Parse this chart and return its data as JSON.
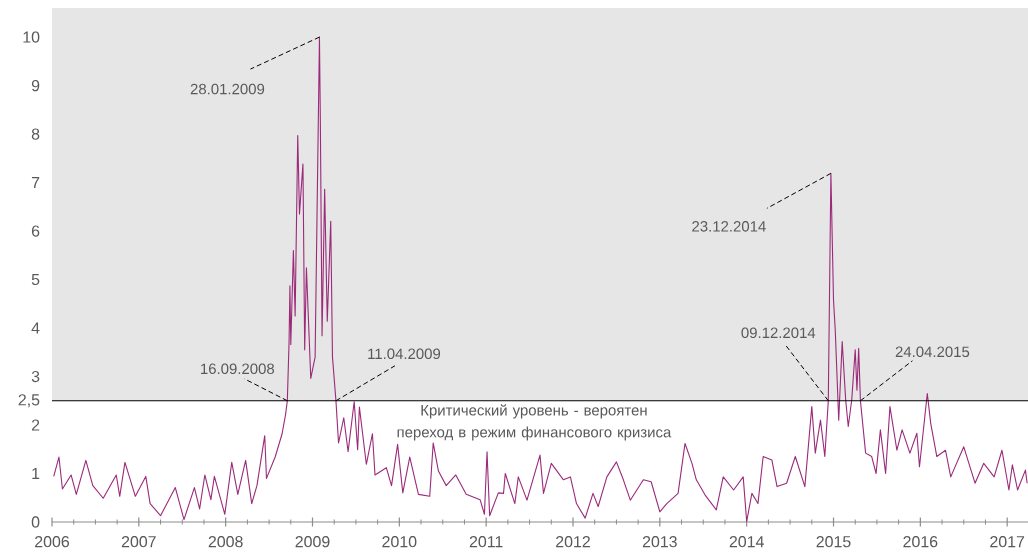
{
  "chart_data": {
    "type": "line",
    "x": [
      2006.02,
      2006.08,
      2006.12,
      2006.22,
      2006.28,
      2006.39,
      2006.47,
      2006.59,
      2006.74,
      2006.78,
      2006.84,
      2006.96,
      2007.08,
      2007.13,
      2007.25,
      2007.42,
      2007.52,
      2007.64,
      2007.7,
      2007.76,
      2007.83,
      2007.87,
      2007.99,
      2008.07,
      2008.14,
      2008.23,
      2008.3,
      2008.36,
      2008.45,
      2008.47,
      2008.57,
      2008.65,
      2008.69,
      2008.71,
      2008.73,
      2008.74,
      2008.75,
      2008.78,
      2008.8,
      2008.83,
      2008.85,
      2008.89,
      2008.91,
      2008.93,
      2008.98,
      2009.03,
      2009.08,
      2009.09,
      2009.11,
      2009.14,
      2009.17,
      2009.21,
      2009.23,
      2009.27,
      2009.3,
      2009.36,
      2009.41,
      2009.48,
      2009.52,
      2009.54,
      2009.62,
      2009.69,
      2009.72,
      2009.85,
      2009.91,
      2009.98,
      2010.04,
      2010.12,
      2010.22,
      2010.35,
      2010.39,
      2010.45,
      2010.54,
      2010.65,
      2010.77,
      2010.93,
      2010.98,
      2011.01,
      2011.04,
      2011.14,
      2011.2,
      2011.22,
      2011.33,
      2011.37,
      2011.47,
      2011.62,
      2011.66,
      2011.75,
      2011.89,
      2011.97,
      2012.04,
      2012.14,
      2012.23,
      2012.29,
      2012.39,
      2012.5,
      2012.58,
      2012.66,
      2012.81,
      2012.9,
      2013.0,
      2013.08,
      2013.21,
      2013.29,
      2013.37,
      2013.42,
      2013.52,
      2013.65,
      2013.73,
      2013.85,
      2013.96,
      2014.0,
      2014.06,
      2014.13,
      2014.19,
      2014.29,
      2014.35,
      2014.46,
      2014.56,
      2014.67,
      2014.75,
      2014.79,
      2014.85,
      2014.9,
      2014.94,
      2014.97,
      2015.0,
      2015.02,
      2015.06,
      2015.1,
      2015.14,
      2015.17,
      2015.21,
      2015.25,
      2015.27,
      2015.29,
      2015.31,
      2015.37,
      2015.44,
      2015.49,
      2015.54,
      2015.6,
      2015.65,
      2015.73,
      2015.79,
      2015.88,
      2015.96,
      2015.99,
      2016.08,
      2016.12,
      2016.19,
      2016.29,
      2016.35,
      2016.5,
      2016.63,
      2016.73,
      2016.85,
      2016.94,
      2017.02,
      2017.06,
      2017.12,
      2017.21,
      2017.23
    ],
    "series": [
      {
        "color": "#9b2a7a",
        "values": [
          0.94,
          1.34,
          0.68,
          0.97,
          0.57,
          1.27,
          0.75,
          0.49,
          0.97,
          0.53,
          1.23,
          0.53,
          0.94,
          0.38,
          0.13,
          0.71,
          0.05,
          0.71,
          0.27,
          0.97,
          0.46,
          0.94,
          0.16,
          1.23,
          0.57,
          1.27,
          0.38,
          0.75,
          1.78,
          0.9,
          1.34,
          1.82,
          2.22,
          2.5,
          3.7,
          4.87,
          3.66,
          5.6,
          4.25,
          7.97,
          6.35,
          7.38,
          3.55,
          5.24,
          2.96,
          3.4,
          10.0,
          8.34,
          3.84,
          6.86,
          4.14,
          6.2,
          3.4,
          2.5,
          1.63,
          2.15,
          1.45,
          2.48,
          1.49,
          2.37,
          1.19,
          1.82,
          0.97,
          1.12,
          0.75,
          1.6,
          0.6,
          1.34,
          0.57,
          0.53,
          1.63,
          1.05,
          0.75,
          0.97,
          0.57,
          0.46,
          0.16,
          1.45,
          0.13,
          0.6,
          0.59,
          1.0,
          0.38,
          0.93,
          0.45,
          1.38,
          0.59,
          1.21,
          0.87,
          0.93,
          0.38,
          0.08,
          0.59,
          0.32,
          0.93,
          1.24,
          0.87,
          0.45,
          0.87,
          0.83,
          0.21,
          0.38,
          0.59,
          1.62,
          1.21,
          0.87,
          0.56,
          0.25,
          0.93,
          0.66,
          0.93,
          0.01,
          0.59,
          0.38,
          1.35,
          1.28,
          0.73,
          0.8,
          1.35,
          0.73,
          2.38,
          1.42,
          2.1,
          1.35,
          2.5,
          7.19,
          4.58,
          3.96,
          2.1,
          3.72,
          2.52,
          1.97,
          2.52,
          3.55,
          2.72,
          3.58,
          2.5,
          1.42,
          1.35,
          1.0,
          1.9,
          1.0,
          2.38,
          1.48,
          1.9,
          1.42,
          1.83,
          1.14,
          2.65,
          2.03,
          1.35,
          1.48,
          0.93,
          1.55,
          0.8,
          1.21,
          0.93,
          1.48,
          0.66,
          1.18,
          0.66,
          1.07,
          0.8
        ]
      }
    ],
    "xlim": [
      2006,
      2017.24
    ],
    "xticks": [
      2006,
      2007,
      2008,
      2009,
      2010,
      2011,
      2012,
      2013,
      2014,
      2015,
      2016,
      2017
    ],
    "ylim": [
      0,
      10.6
    ],
    "yticks": [
      0,
      1,
      2,
      {
        "value": 2.5,
        "label": "2,5"
      },
      3,
      4,
      5,
      6,
      7,
      8,
      9,
      10
    ],
    "bands": [
      {
        "axis": "y",
        "from": 2.5,
        "to": 10.6,
        "color": "#e6e6e6"
      }
    ],
    "ref_lines": [
      {
        "axis": "y",
        "value": 2.5,
        "label": "Критический уровень - вероятен переход в режим финансового кризиса",
        "color": "#000000"
      }
    ],
    "annotations": [
      {
        "text": "28.01.2009",
        "x": 2009.08,
        "y": 10.0
      },
      {
        "text": "16.09.2008",
        "x": 2008.71,
        "y": 2.5
      },
      {
        "text": "11.04.2009",
        "x": 2009.27,
        "y": 2.5
      },
      {
        "text": "23.12.2014",
        "x": 2014.97,
        "y": 7.19
      },
      {
        "text": "09.12.2014",
        "x": 2014.94,
        "y": 2.5
      },
      {
        "text": "24.04.2015",
        "x": 2015.31,
        "y": 2.5
      }
    ],
    "grid": false
  }
}
